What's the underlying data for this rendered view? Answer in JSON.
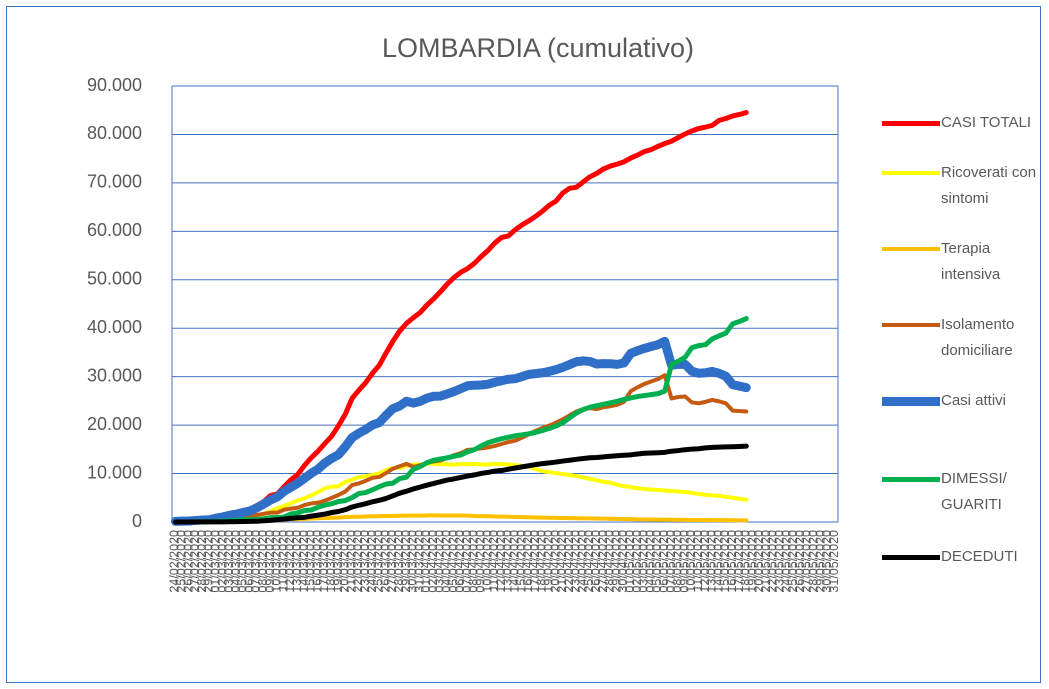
{
  "chart_data": {
    "type": "line",
    "title": "LOMBARDIA (cumulativo)",
    "categories": [
      "24/02/2020",
      "25/02/2020",
      "26/02/2020",
      "27/02/2020",
      "28/02/2020",
      "29/02/2020",
      "01/03/2020",
      "02/03/2020",
      "03/03/2020",
      "04/03/2020",
      "05/03/2020",
      "06/03/2020",
      "07/03/2020",
      "08/03/2020",
      "09/03/2020",
      "10/03/2020",
      "11/03/2020",
      "12/03/2020",
      "13/03/2020",
      "14/03/2020",
      "15/03/2020",
      "16/03/2020",
      "17/03/2020",
      "18/03/2020",
      "19/03/2020",
      "20/03/2020",
      "21/03/2020",
      "22/03/2020",
      "23/03/2020",
      "24/03/2020",
      "25/03/2020",
      "26/03/2020",
      "27/03/2020",
      "28/03/2020",
      "29/03/2020",
      "30/03/2020",
      "31/03/2020",
      "01/04/2020",
      "02/04/2020",
      "03/04/2020",
      "04/04/2020",
      "05/04/2020",
      "06/04/2020",
      "07/04/2020",
      "08/04/2020",
      "09/04/2020",
      "10/04/2020",
      "11/04/2020",
      "12/04/2020",
      "13/04/2020",
      "14/04/2020",
      "15/04/2020",
      "16/04/2020",
      "17/04/2020",
      "18/04/2020",
      "19/04/2020",
      "20/04/2020",
      "21/04/2020",
      "22/04/2020",
      "23/04/2020",
      "24/04/2020",
      "25/04/2020",
      "26/04/2020",
      "27/04/2020",
      "28/04/2020",
      "29/04/2020",
      "30/04/2020",
      "01/05/2020",
      "02/05/2020",
      "03/05/2020",
      "04/05/2020",
      "05/05/2020",
      "06/05/2020",
      "07/05/2020",
      "08/05/2020",
      "09/05/2020",
      "10/05/2020",
      "11/05/2020",
      "12/05/2020",
      "13/05/2020",
      "14/05/2020",
      "15/05/2020",
      "16/05/2020",
      "17/05/2020",
      "18/05/2020",
      "19/05/2020",
      "20/05/2020",
      "21/05/2020",
      "22/05/2020",
      "23/05/2020",
      "24/05/2020",
      "25/05/2020",
      "26/05/2020",
      "27/05/2020",
      "28/05/2020",
      "29/05/2020",
      "30/05/2020",
      "31/05/2020"
    ],
    "ylim": [
      0,
      90000
    ],
    "yticks": [
      0,
      {
        "value": 10000,
        "label": "10.000"
      },
      {
        "value": 20000,
        "label": "20.000"
      },
      {
        "value": 30000,
        "label": "30.000"
      },
      {
        "value": 40000,
        "label": "40.000"
      },
      {
        "value": 50000,
        "label": "50.000"
      },
      {
        "value": 60000,
        "label": "60.000"
      },
      {
        "value": 70000,
        "label": "70.000"
      },
      {
        "value": 80000,
        "label": "80.000"
      },
      {
        "value": 90000,
        "label": "90.000"
      }
    ],
    "grid": true,
    "legend": "right",
    "series": [
      {
        "name": "CASI TOTALI",
        "color": "#ff0000",
        "values": [
          172,
          240,
          258,
          403,
          531,
          615,
          984,
          1254,
          1520,
          1820,
          2251,
          2612,
          3420,
          4189,
          5469,
          5791,
          7280,
          8725,
          9820,
          11685,
          13272,
          14649,
          16220,
          17713,
          19884,
          22264,
          25515,
          27206,
          28761,
          30703,
          32346,
          34889,
          37298,
          39415,
          41007,
          42161,
          43208,
          44773,
          46065,
          47520,
          49118,
          50455,
          51534,
          52325,
          53414,
          54802,
          56048,
          57592,
          58729,
          59052,
          60314,
          61326,
          62153,
          63094,
          64135,
          65381,
          66236,
          67931,
          68877,
          69092,
          70195,
          71256,
          71969,
          72889,
          73479,
          73876,
          74348,
          75134,
          75732,
          76469,
          76873,
          77528,
          78105,
          78605,
          79369,
          80089,
          80723,
          81225,
          81507,
          81871,
          82904,
          83298,
          83820,
          84119,
          84518,
          null,
          null,
          null,
          null,
          null,
          null,
          null,
          null,
          null,
          null,
          null,
          null,
          null
        ]
      },
      {
        "name": "Ricoverati con sintomi",
        "color": "#ffff00",
        "values": [
          76,
          79,
          79,
          162,
          235,
          256,
          406,
          478,
          698,
          798,
          877,
          1034,
          1169,
          1661,
          2217,
          2802,
          3319,
          3852,
          4435,
          4898,
          5500,
          6171,
          6953,
          7285,
          7387,
          8258,
          8735,
          9266,
          9439,
          9711,
          10026,
          10681,
          11137,
          11152,
          11613,
          11815,
          11883,
          12009,
          12077,
          11927,
          11914,
          11802,
          12000,
          11913,
          12002,
          11873,
          11880,
          12000,
          11950,
          11900,
          11750,
          11600,
          11400,
          10900,
          10500,
          10300,
          10100,
          9900,
          9700,
          9500,
          9200,
          8900,
          8600,
          8300,
          8100,
          7700,
          7400,
          7200,
          7000,
          6800,
          6700,
          6600,
          6500,
          6400,
          6300,
          6200,
          6000,
          5800,
          5600,
          5500,
          5400,
          5200,
          5000,
          4800,
          4600,
          null,
          null,
          null,
          null,
          null,
          null,
          null,
          null,
          null,
          null,
          null,
          null,
          null
        ]
      },
      {
        "name": "Terapia intensiva",
        "color": "#ffc000",
        "values": [
          19,
          25,
          25,
          41,
          47,
          60,
          85,
          106,
          127,
          167,
          209,
          244,
          309,
          359,
          399,
          440,
          466,
          560,
          605,
          650,
          732,
          767,
          823,
          879,
          924,
          1006,
          1050,
          1093,
          1142,
          1183,
          1194,
          1236,
          1263,
          1292,
          1319,
          1330,
          1324,
          1351,
          1381,
          1351,
          1343,
          1343,
          1334,
          1305,
          1236,
          1202,
          1174,
          1143,
          1117,
          1074,
          1032,
          1011,
          974,
          934,
          902,
          872,
          856,
          818,
          791,
          780,
          756,
          743,
          712,
          701,
          660,
          640,
          622,
          592,
          553,
          532,
          529,
          492,
          478,
          474,
          458,
          442,
          419,
          413,
          401,
          389,
          384,
          381,
          362,
          345,
          330,
          null,
          null,
          null,
          null,
          null,
          null,
          null,
          null,
          null,
          null,
          null,
          null,
          null
        ]
      },
      {
        "name": "Isolamento domiciliare",
        "color": "#c55a11",
        "values": [
          42,
          76,
          94,
          121,
          129,
          156,
          321,
          466,
          580,
          664,
          897,
          1018,
          1462,
          1691,
          1928,
          1931,
          2550,
          2768,
          2951,
          3488,
          3829,
          3995,
          4408,
          4974,
          5580,
          6275,
          7636,
          7969,
          8500,
          9120,
          9300,
          10100,
          11000,
          11500,
          12000,
          11400,
          11700,
          12200,
          12500,
          12700,
          13200,
          13800,
          14200,
          14900,
          15000,
          15200,
          15400,
          15700,
          16100,
          16500,
          16800,
          17400,
          18100,
          18800,
          19400,
          19900,
          20500,
          21200,
          22000,
          22800,
          23300,
          23500,
          23300,
          23700,
          23900,
          24200,
          24800,
          27000,
          27800,
          28500,
          29000,
          29500,
          30300,
          25500,
          25800,
          25900,
          24700,
          24500,
          24800,
          25200,
          24900,
          24500,
          23000,
          22900,
          22800,
          null,
          null,
          null,
          null,
          null,
          null,
          null,
          null,
          null,
          null,
          null,
          null,
          null
        ]
      },
      {
        "name": "Casi attivi",
        "color": "#2f6fc7",
        "values": [
          137,
          180,
          198,
          324,
          411,
          472,
          812,
          1050,
          1405,
          1629,
          1983,
          2296,
          2940,
          3711,
          4544,
          5173,
          6335,
          7180,
          7991,
          9036,
          10061,
          10933,
          12184,
          13138,
          13891,
          15539,
          17421,
          18328,
          19081,
          20014,
          20520,
          22017,
          23400,
          23944,
          24932,
          24545,
          24907,
          25560,
          25958,
          25978,
          26457,
          26945,
          27534,
          28118,
          28238,
          28275,
          28454,
          28843,
          29167,
          29474,
          29582,
          30011,
          30474,
          30634,
          30802,
          31072,
          31456,
          31918,
          32491,
          33080,
          33256,
          33143,
          32612,
          32701,
          32660,
          32540,
          32822,
          34792,
          35353,
          35832,
          36229,
          36592,
          37278,
          32374,
          32558,
          32542,
          31119,
          30713,
          30801,
          31089,
          30684,
          30081,
          28362,
          28045,
          27730,
          null,
          null,
          null,
          null,
          null,
          null,
          null,
          null,
          null,
          null,
          null,
          null,
          null
        ]
      },
      {
        "name": "DIMESSI/ GUARITI",
        "color": "#00b050",
        "values": [
          0,
          0,
          0,
          40,
          40,
          40,
          139,
          139,
          250,
          376,
          466,
          524,
          550,
          646,
          896,
          900,
          1020,
          1660,
          1895,
          2368,
          2485,
          3068,
          3478,
          3778,
          4235,
          4420,
          5050,
          5865,
          6075,
          6657,
          7281,
          7839,
          8001,
          8962,
          9255,
          10885,
          11415,
          12229,
          12740,
          13020,
          13242,
          13590,
          13842,
          14498,
          14927,
          15706,
          16378,
          16800,
          17200,
          17500,
          17800,
          18000,
          18200,
          18500,
          18900,
          19300,
          19800,
          20500,
          21500,
          22500,
          23200,
          23700,
          24000,
          24300,
          24600,
          24900,
          25300,
          25600,
          25900,
          26100,
          26300,
          26500,
          27000,
          32500,
          33200,
          34000,
          36000,
          36400,
          36600,
          37800,
          38400,
          39000,
          40900,
          41400,
          42000,
          null,
          null,
          null,
          null,
          null,
          null,
          null,
          null,
          null,
          null,
          null,
          null,
          null
        ]
      },
      {
        "name": "DECEDUTI",
        "color": "#000000",
        "values": [
          6,
          9,
          9,
          14,
          17,
          23,
          31,
          38,
          55,
          73,
          98,
          135,
          154,
          267,
          333,
          468,
          617,
          744,
          890,
          966,
          1218,
          1420,
          1640,
          1959,
          2168,
          2549,
          3095,
          3456,
          3776,
          4178,
          4474,
          4861,
          5402,
          5944,
          6360,
          6818,
          7199,
          7593,
          7960,
          8311,
          8656,
          8905,
          9202,
          9484,
          9722,
          10022,
          10238,
          10511,
          10621,
          10901,
          11142,
          11377,
          11608,
          11851,
          12050,
          12213,
          12376,
          12579,
          12740,
          12940,
          13106,
          13269,
          13325,
          13449,
          13575,
          13679,
          13772,
          13860,
          14045,
          14189,
          14231,
          14294,
          14380,
          14611,
          14745,
          14924,
          15054,
          15116,
          15296,
          15411,
          15466,
          15519,
          15543,
          15597,
          15662,
          null,
          null,
          null,
          null,
          null,
          null,
          null,
          null,
          null,
          null,
          null,
          null,
          null
        ]
      }
    ]
  }
}
